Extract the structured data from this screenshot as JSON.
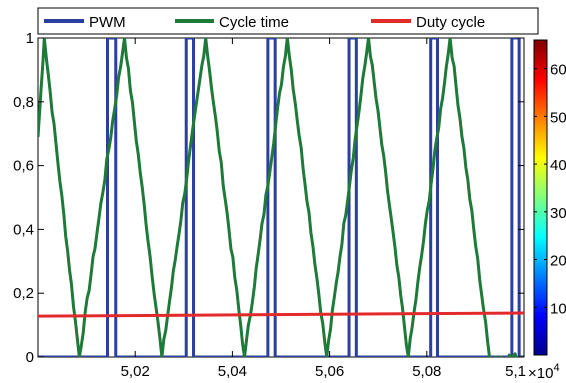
{
  "chart_data": {
    "type": "line",
    "title": "",
    "xlabel": "",
    "ylabel": "",
    "x_exponent_label": "×10",
    "x_exponent_power": "4",
    "xlim": [
      50000,
      51000
    ],
    "ylim": [
      0,
      1
    ],
    "x_ticks": [
      {
        "value": 50200,
        "label": "5,02"
      },
      {
        "value": 50400,
        "label": "5,04"
      },
      {
        "value": 50600,
        "label": "5,06"
      },
      {
        "value": 50800,
        "label": "5,08"
      },
      {
        "value": 51000,
        "label": "5,1"
      }
    ],
    "y_ticks": [
      {
        "value": 0,
        "label": "0"
      },
      {
        "value": 0.2,
        "label": "0,2"
      },
      {
        "value": 0.4,
        "label": "0,4"
      },
      {
        "value": 0.6,
        "label": "0,6"
      },
      {
        "value": 0.8,
        "label": "0,8"
      },
      {
        "value": 1,
        "label": "1"
      }
    ],
    "grid": false,
    "legend_position": "top",
    "series": [
      {
        "name": "PWM",
        "color": "#2b3f9e",
        "style": "step",
        "high_intervals": [
          [
            50143,
            50160
          ],
          [
            50305,
            50320
          ],
          [
            50473,
            50488
          ],
          [
            50640,
            50655
          ],
          [
            50808,
            50822
          ],
          [
            50975,
            50990
          ]
        ]
      },
      {
        "name": "Cycle time",
        "color": "#1f7a3a",
        "style": "sawtooth",
        "peaks": [
          50013,
          50178,
          50345,
          50513,
          50680,
          50848
        ],
        "troughs": [
          50085,
          50255,
          50425,
          50594,
          50762,
          50929,
          50998
        ],
        "start": [
          50000,
          0.69
        ],
        "end": [
          51000,
          0.0
        ]
      },
      {
        "name": "Duty cycle",
        "color": "#e32a2a",
        "style": "line",
        "x": [
          50000,
          51000
        ],
        "y": [
          0.128,
          0.138
        ]
      }
    ],
    "colorbar": {
      "colormap": "jet",
      "tick_labels": [
        "10",
        "20",
        "30",
        "40",
        "50",
        "60"
      ],
      "tick_values": [
        10,
        20,
        30,
        40,
        50,
        60
      ],
      "range": [
        0,
        66
      ]
    }
  }
}
